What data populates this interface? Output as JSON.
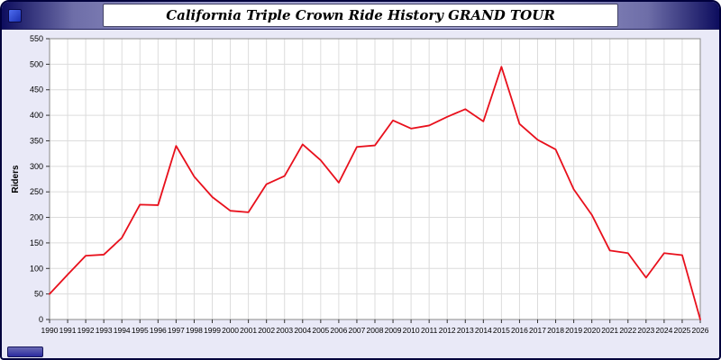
{
  "window": {
    "title": "California Triple Crown Ride History GRAND TOUR"
  },
  "colors": {
    "line": "#e8101c",
    "plot_background": "#ffffff",
    "outer_background": "#e9e9f7",
    "frame": "#00003c",
    "grid": "#dcdcdc",
    "titlebar_dark": "#0d0d5e",
    "titlebar_light": "#a6a6d2",
    "bottom_chip": "#2b2ba0"
  },
  "chart_data": {
    "type": "line",
    "title": "California Triple Crown Ride History GRAND TOUR",
    "xlabel": "",
    "ylabel": "Riders",
    "ylim": [
      0,
      550
    ],
    "ytick_step": 50,
    "grid": true,
    "legend": "none",
    "line_color": "#e8101c",
    "x": [
      1990,
      1991,
      1992,
      1993,
      1994,
      1995,
      1996,
      1997,
      1998,
      1999,
      2000,
      2001,
      2002,
      2003,
      2004,
      2005,
      2006,
      2007,
      2008,
      2009,
      2010,
      2011,
      2012,
      2013,
      2014,
      2015,
      2016,
      2017,
      2018,
      2019,
      2020,
      2021,
      2022,
      2023,
      2024,
      2025,
      2026
    ],
    "values": [
      50,
      88,
      125,
      127,
      160,
      225,
      224,
      340,
      280,
      240,
      213,
      210,
      265,
      281,
      343,
      312,
      268,
      338,
      341,
      390,
      374,
      380,
      397,
      412,
      388,
      495,
      383,
      352,
      333,
      255,
      205,
      135,
      130,
      82,
      130,
      126,
      0
    ]
  }
}
